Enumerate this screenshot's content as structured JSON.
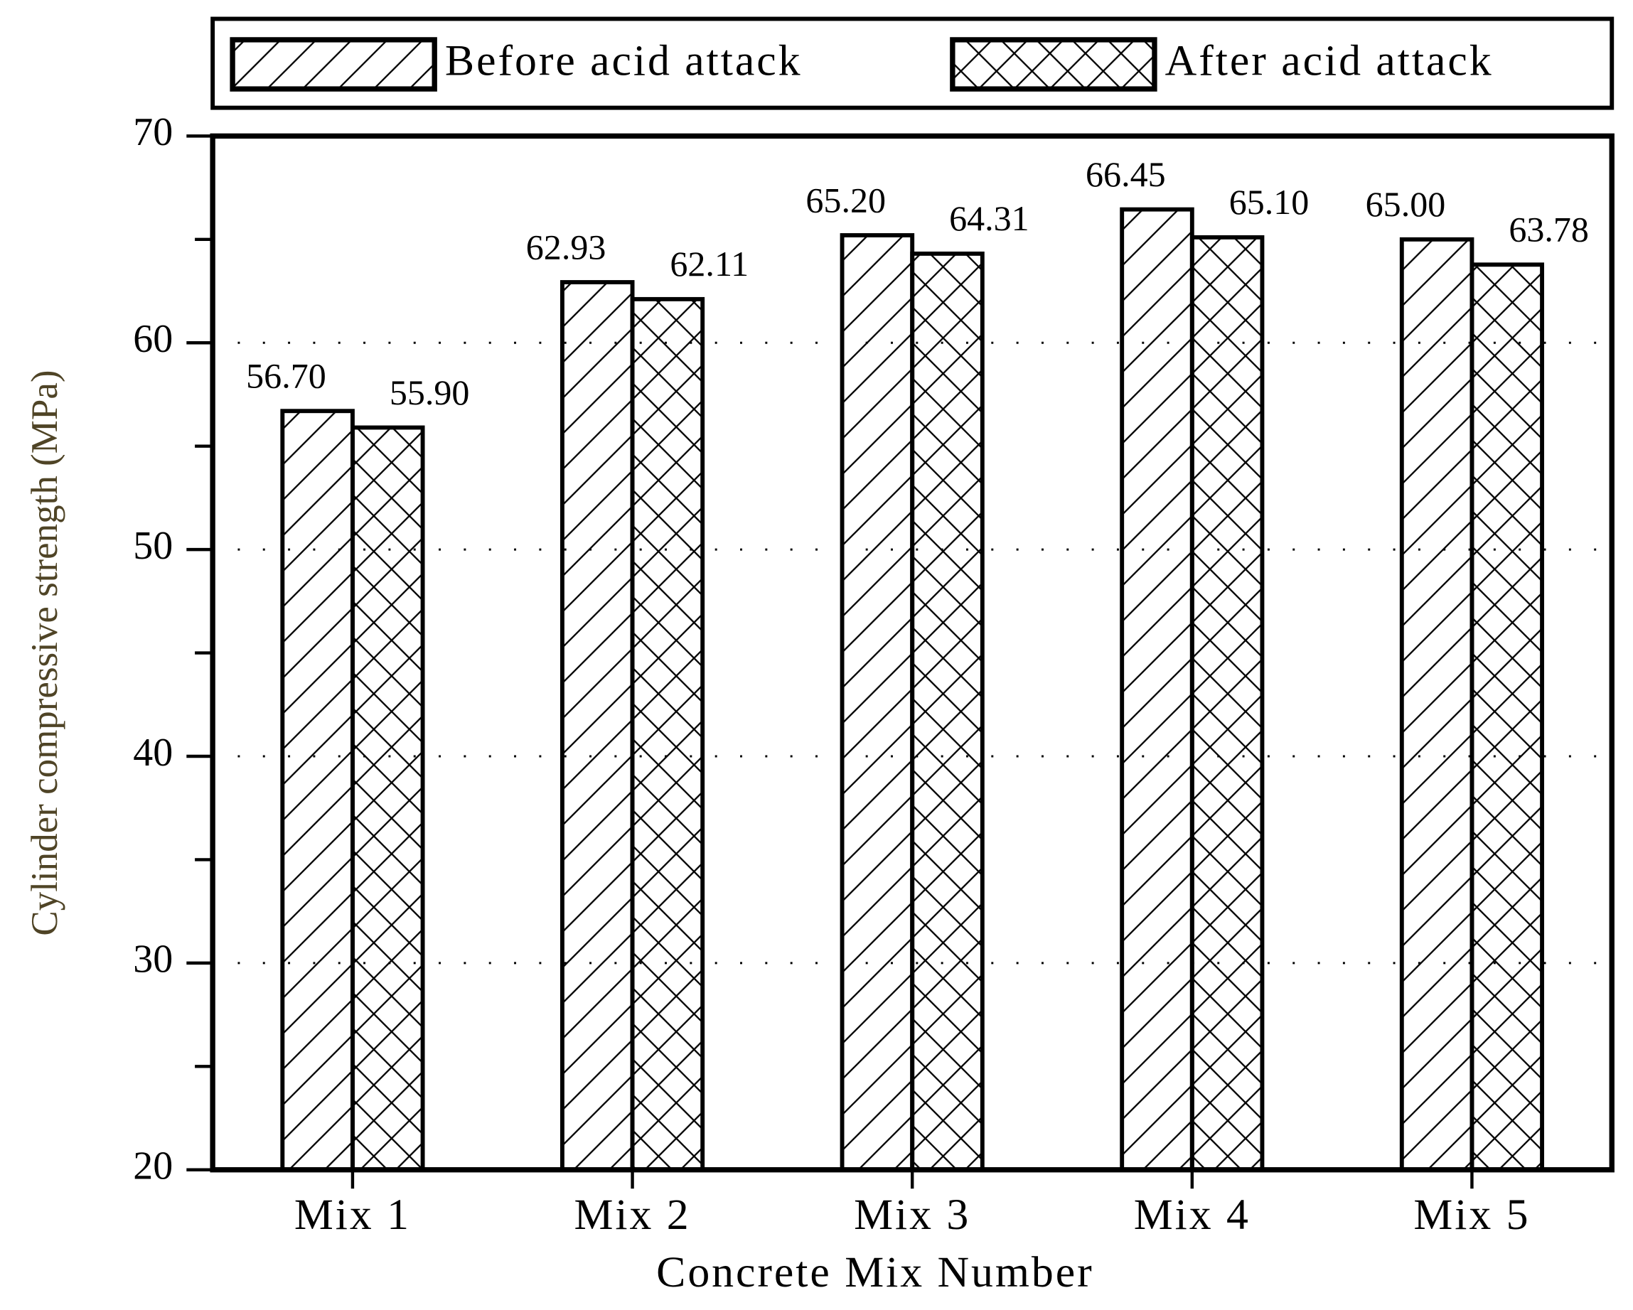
{
  "chart_data": {
    "type": "bar",
    "xlabel": "Concrete Mix Number",
    "ylabel": "Cylinder compressive strength (MPa)",
    "categories": [
      "Mix 1",
      "Mix 2",
      "Mix 3",
      "Mix 4",
      "Mix 5"
    ],
    "series": [
      {
        "name": "Before acid attack",
        "pattern": "diagonal",
        "color": "#000000",
        "values": [
          56.7,
          62.93,
          65.2,
          66.45,
          65
        ],
        "value_labels": [
          "56.70",
          "62.93",
          "65.20",
          "66.45",
          "65.00"
        ]
      },
      {
        "name": "After acid attack",
        "pattern": "crosshatch",
        "color": "#000000",
        "values": [
          55.9,
          62.11,
          64.31,
          65.1,
          63.78
        ],
        "value_labels": [
          "55.90",
          "62.11",
          "64.31",
          "65.10",
          "63.78"
        ]
      }
    ],
    "ylim": [
      20,
      70
    ],
    "yticks": [
      20,
      30,
      40,
      50,
      60,
      70
    ],
    "yminorticks": [
      25,
      35,
      45,
      55,
      65
    ],
    "grid": true,
    "legend": "top"
  }
}
